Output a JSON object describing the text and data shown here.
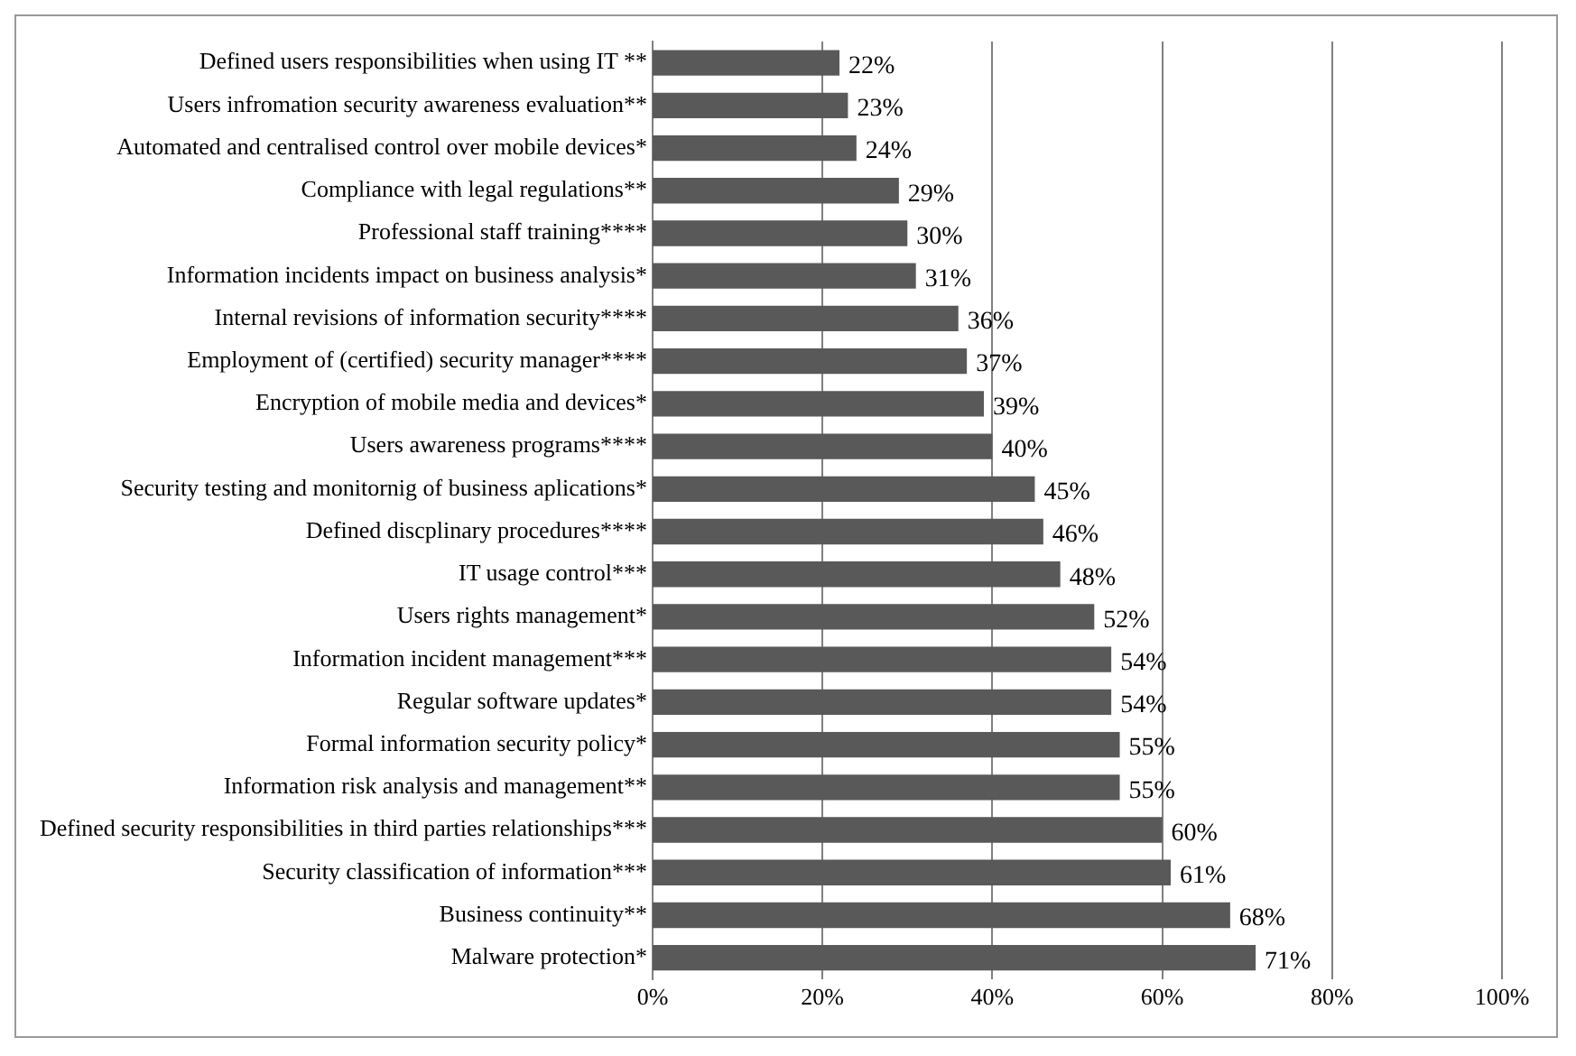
{
  "chart_data": {
    "type": "bar",
    "orientation": "horizontal",
    "categories": [
      "Defined users responsibilities when using IT **",
      "Users infromation security awareness evaluation**",
      "Automated and centralised control over mobile devices*",
      "Compliance with legal regulations**",
      "Professional staff training****",
      "Information incidents impact on business analysis*",
      "Internal revisions of information security****",
      "Employment of (certified) security manager****",
      "Encryption of mobile media and devices*",
      "Users awareness programs****",
      "Security testing and monitornig of business aplications*",
      "Defined discplinary procedures****",
      "IT usage control***",
      "Users rights management*",
      "Information incident management***",
      "Regular software updates*",
      "Formal information security policy*",
      "Information risk analysis and management**",
      "Defined security responsibilities in third parties relationships***",
      "Security classification of information***",
      "Business continuity**",
      "Malware protection*"
    ],
    "values": [
      22,
      23,
      24,
      29,
      30,
      31,
      36,
      37,
      39,
      40,
      45,
      46,
      48,
      52,
      54,
      54,
      55,
      55,
      60,
      61,
      68,
      71
    ],
    "value_labels": [
      "22%",
      "23%",
      "24%",
      "29%",
      "30%",
      "31%",
      "36%",
      "37%",
      "39%",
      "40%",
      "45%",
      "46%",
      "48%",
      "52%",
      "54%",
      "54%",
      "55%",
      "55%",
      "60%",
      "61%",
      "68%",
      "71%"
    ],
    "color": "#595959",
    "xlim": [
      0,
      100
    ],
    "xticks": [
      {
        "value": 0,
        "label": "0%"
      },
      {
        "value": 20,
        "label": "20%"
      },
      {
        "value": 40,
        "label": "40%"
      },
      {
        "value": 60,
        "label": "60%"
      },
      {
        "value": 80,
        "label": "80%"
      },
      {
        "value": 100,
        "label": "100%"
      }
    ],
    "grid": "x",
    "legend": false
  }
}
